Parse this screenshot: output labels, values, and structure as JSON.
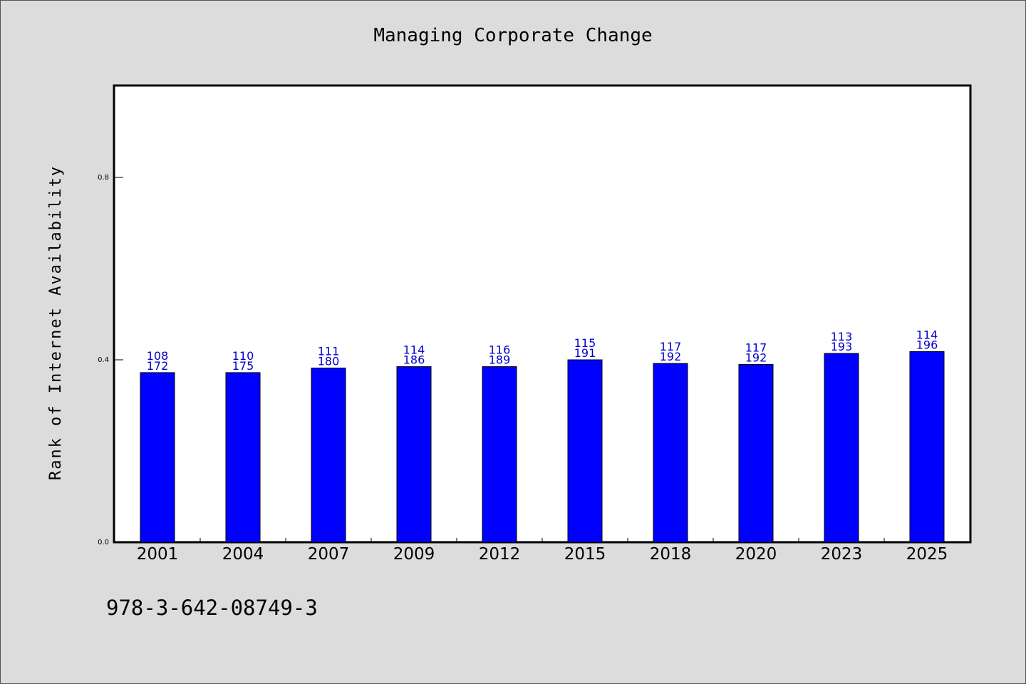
{
  "chart_data": {
    "type": "bar",
    "title": "Managing Corporate Change",
    "xlabel": "",
    "ylabel": "Rank of Internet Availability",
    "categories": [
      "2001",
      "2004",
      "2007",
      "2009",
      "2012",
      "2015",
      "2018",
      "2020",
      "2023",
      "2025"
    ],
    "values": [
      0.372,
      0.372,
      0.382,
      0.385,
      0.385,
      0.4,
      0.392,
      0.39,
      0.414,
      0.418
    ],
    "data_labels_upper": [
      "108",
      "110",
      "111",
      "114",
      "116",
      "115",
      "117",
      "117",
      "113",
      "114"
    ],
    "data_labels_lower": [
      "172",
      "175",
      "180",
      "186",
      "189",
      "191",
      "192",
      "192",
      "193",
      "196"
    ],
    "yticks": [
      "0.0",
      "0.4",
      "0.8"
    ],
    "ylim": [
      0,
      1.0
    ],
    "grid": false,
    "bar_color": "#0000ff",
    "label_color": "#0000cc"
  },
  "footer": {
    "isbn": "978-3-642-08749-3"
  }
}
